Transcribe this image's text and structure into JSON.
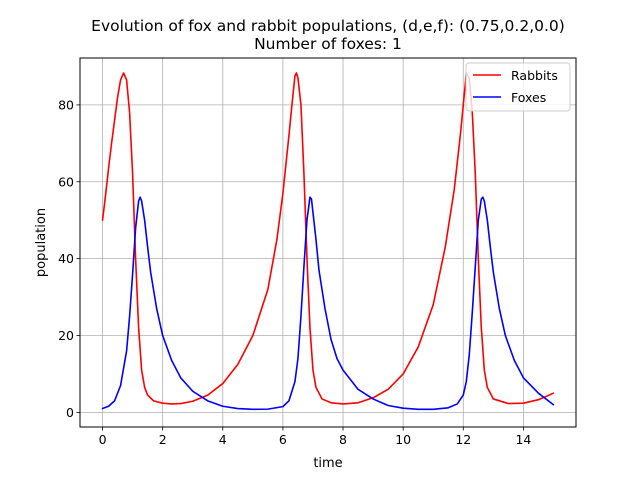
{
  "chart_data": {
    "type": "line",
    "title": "Evolution of fox and rabbit populations, (d,e,f): (0.75,0.2,0.0)",
    "subtitle": "Number of foxes: 1",
    "xlabel": "time",
    "ylabel": "population",
    "xlim": [
      -0.75,
      15.75
    ],
    "ylim": [
      -3.8,
      92.2
    ],
    "xticks": [
      0,
      2,
      4,
      6,
      8,
      10,
      12,
      14
    ],
    "yticks": [
      0,
      20,
      40,
      60,
      80
    ],
    "xtick_labels": [
      "0",
      "2",
      "4",
      "6",
      "8",
      "10",
      "12",
      "14"
    ],
    "ytick_labels": [
      "0",
      "20",
      "40",
      "60",
      "80"
    ],
    "grid": true,
    "legend_position": "top-right",
    "series": [
      {
        "name": "Rabbits",
        "color": "#ff0000",
        "points": [
          [
            0,
            50
          ],
          [
            0.1,
            56.5
          ],
          [
            0.2,
            63.5
          ],
          [
            0.3,
            70
          ],
          [
            0.4,
            76
          ],
          [
            0.5,
            82
          ],
          [
            0.6,
            86.5
          ],
          [
            0.7,
            88.3
          ],
          [
            0.8,
            86.5
          ],
          [
            0.9,
            78
          ],
          [
            1.0,
            62
          ],
          [
            1.1,
            40
          ],
          [
            1.2,
            22
          ],
          [
            1.3,
            11
          ],
          [
            1.4,
            6.5
          ],
          [
            1.5,
            4.5
          ],
          [
            1.7,
            3
          ],
          [
            2.0,
            2.4
          ],
          [
            2.3,
            2.2
          ],
          [
            2.6,
            2.3
          ],
          [
            3.0,
            2.9
          ],
          [
            3.5,
            4.5
          ],
          [
            4.0,
            7.5
          ],
          [
            4.5,
            12.5
          ],
          [
            5.0,
            20
          ],
          [
            5.5,
            32
          ],
          [
            5.8,
            45
          ],
          [
            6.0,
            57
          ],
          [
            6.2,
            72
          ],
          [
            6.3,
            80
          ],
          [
            6.4,
            87.5
          ],
          [
            6.45,
            88.3
          ],
          [
            6.5,
            87
          ],
          [
            6.6,
            80
          ],
          [
            6.7,
            62
          ],
          [
            6.8,
            40
          ],
          [
            6.9,
            22
          ],
          [
            7.0,
            11
          ],
          [
            7.1,
            6.5
          ],
          [
            7.3,
            3.5
          ],
          [
            7.6,
            2.5
          ],
          [
            8.0,
            2.2
          ],
          [
            8.5,
            2.5
          ],
          [
            9.0,
            3.8
          ],
          [
            9.5,
            6
          ],
          [
            10.0,
            10
          ],
          [
            10.5,
            17
          ],
          [
            11.0,
            28
          ],
          [
            11.4,
            43
          ],
          [
            11.7,
            58
          ],
          [
            11.9,
            72
          ],
          [
            12.0,
            80
          ],
          [
            12.05,
            84
          ],
          [
            12.1,
            88.3
          ],
          [
            12.2,
            87
          ],
          [
            12.3,
            78
          ],
          [
            12.4,
            62
          ],
          [
            12.5,
            40
          ],
          [
            12.6,
            22
          ],
          [
            12.7,
            11
          ],
          [
            12.8,
            6.5
          ],
          [
            13.0,
            3.5
          ],
          [
            13.5,
            2.3
          ],
          [
            14.0,
            2.4
          ],
          [
            14.5,
            3.3
          ],
          [
            15.0,
            5
          ]
        ]
      },
      {
        "name": "Foxes",
        "color": "#0000ff",
        "points": [
          [
            0,
            1
          ],
          [
            0.2,
            1.6
          ],
          [
            0.4,
            3
          ],
          [
            0.6,
            7
          ],
          [
            0.8,
            16
          ],
          [
            0.9,
            25
          ],
          [
            1.0,
            36
          ],
          [
            1.1,
            48
          ],
          [
            1.2,
            55
          ],
          [
            1.25,
            56
          ],
          [
            1.3,
            55
          ],
          [
            1.4,
            50
          ],
          [
            1.5,
            43
          ],
          [
            1.6,
            36.5
          ],
          [
            1.8,
            27
          ],
          [
            2.0,
            20
          ],
          [
            2.3,
            13.5
          ],
          [
            2.6,
            9
          ],
          [
            3.0,
            5.5
          ],
          [
            3.5,
            3
          ],
          [
            4.0,
            1.6
          ],
          [
            4.5,
            1
          ],
          [
            5.0,
            0.8
          ],
          [
            5.5,
            0.85
          ],
          [
            6.0,
            1.5
          ],
          [
            6.2,
            3
          ],
          [
            6.4,
            8
          ],
          [
            6.5,
            14
          ],
          [
            6.6,
            25
          ],
          [
            6.7,
            38
          ],
          [
            6.8,
            50
          ],
          [
            6.9,
            56
          ],
          [
            6.95,
            55.5
          ],
          [
            7.0,
            52
          ],
          [
            7.1,
            45
          ],
          [
            7.2,
            37
          ],
          [
            7.4,
            27
          ],
          [
            7.6,
            19
          ],
          [
            7.8,
            14
          ],
          [
            8.0,
            11
          ],
          [
            8.5,
            6
          ],
          [
            9.0,
            3.5
          ],
          [
            9.5,
            1.8
          ],
          [
            10.0,
            1.1
          ],
          [
            10.5,
            0.8
          ],
          [
            11.0,
            0.8
          ],
          [
            11.5,
            1.2
          ],
          [
            11.8,
            2.2
          ],
          [
            12.0,
            4.5
          ],
          [
            12.1,
            8
          ],
          [
            12.2,
            15
          ],
          [
            12.3,
            26
          ],
          [
            12.4,
            38
          ],
          [
            12.5,
            50
          ],
          [
            12.6,
            55.5
          ],
          [
            12.65,
            56
          ],
          [
            12.7,
            55
          ],
          [
            12.8,
            50
          ],
          [
            12.9,
            43
          ],
          [
            13.0,
            36.5
          ],
          [
            13.2,
            27
          ],
          [
            13.4,
            20
          ],
          [
            13.7,
            13.5
          ],
          [
            14.0,
            9
          ],
          [
            14.5,
            5
          ],
          [
            15.0,
            2
          ]
        ]
      }
    ]
  }
}
